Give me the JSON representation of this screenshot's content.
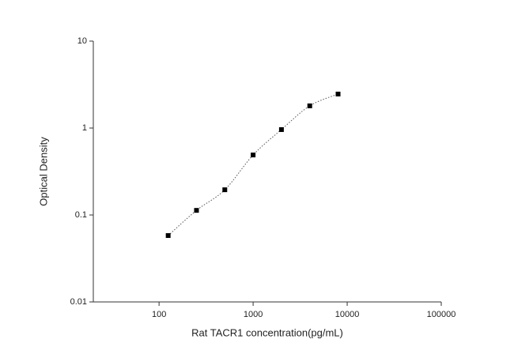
{
  "chart_data": {
    "type": "scatter",
    "x_label": "Rat TACR1 concentration(pg/mL)",
    "y_label": "Optical Density",
    "x": [
      125,
      250,
      500,
      1000,
      2000,
      4000,
      8000
    ],
    "values": [
      0.058,
      0.113,
      0.195,
      0.49,
      0.96,
      1.8,
      2.46
    ],
    "color": "#000000",
    "marker": "square",
    "fit_line": "dotted",
    "xscale": "log",
    "yscale": "log",
    "xlim": [
      20,
      100000
    ],
    "ylim": [
      0.01,
      10
    ],
    "xticks": [
      100,
      1000,
      10000,
      100000
    ],
    "yticks": [
      0.01,
      0.1,
      1,
      10
    ]
  }
}
